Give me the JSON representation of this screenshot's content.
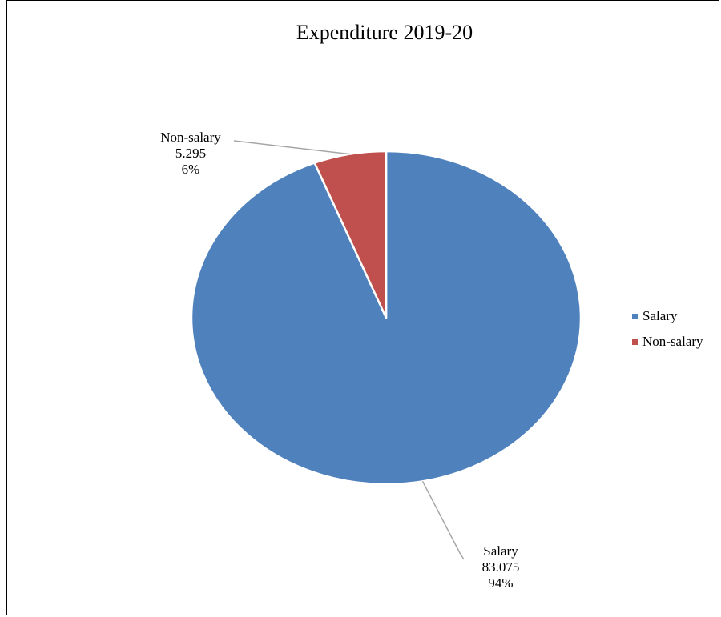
{
  "chart_data": {
    "type": "pie",
    "title": "Expenditure 2019-20",
    "legend_position": "right",
    "series": [
      {
        "name": "Salary",
        "value": 83.075,
        "percent": "94%",
        "value_label": "83.075",
        "color": "#4f81bd"
      },
      {
        "name": "Non-salary",
        "value": 5.295,
        "percent": "6%",
        "value_label": "5.295",
        "color": "#c0504d"
      }
    ]
  }
}
